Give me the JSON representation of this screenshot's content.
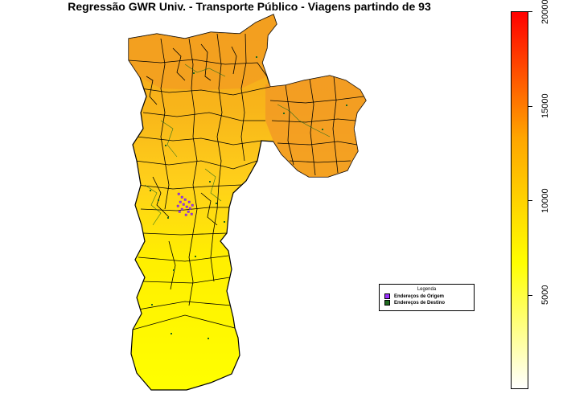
{
  "map": {
    "title": "Regressão GWR Univ. - Transporte Público - Viagens partindo de 93"
  },
  "legend": {
    "title": "Legenda",
    "items": [
      {
        "label": "Endereços de Origem",
        "color": "#9b30ff"
      },
      {
        "label": "Endereços de Destino",
        "color": "#1f6b1f"
      }
    ]
  },
  "colorbar": {
    "min": 0,
    "max": 20000,
    "gradient": [
      "#ffffff",
      "#ffff00",
      "#ffa500",
      "#ff0000"
    ],
    "ticks": [
      {
        "value": 5000,
        "label": "5000"
      },
      {
        "value": 10000,
        "label": "10000"
      },
      {
        "value": 15000,
        "label": "15000"
      },
      {
        "value": 20000,
        "label": "20000"
      }
    ]
  },
  "colors": {
    "north": "#f4a21c",
    "east": "#f29a24",
    "center": "#ffd21a",
    "south": "#ffff00",
    "borders": "#000000",
    "destination_dots": "#1f6b1f",
    "origin_dots": "#9b30ff"
  }
}
